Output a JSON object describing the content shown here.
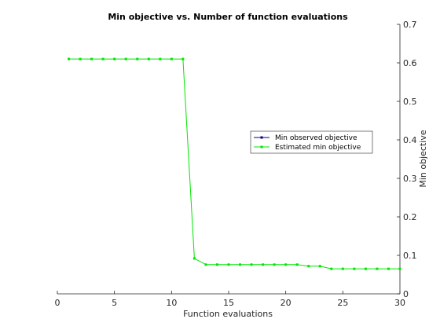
{
  "chart_data": {
    "type": "line",
    "title": "Min objective vs. Number of function evaluations",
    "xlabel": "Function evaluations",
    "ylabel": "Min objective",
    "xlim": [
      0,
      30
    ],
    "ylim": [
      0,
      0.7
    ],
    "x_ticks": [
      "0",
      "5",
      "10",
      "15",
      "20",
      "25",
      "30"
    ],
    "y_ticks": [
      "0",
      "0.1",
      "0.2",
      "0.3",
      "0.4",
      "0.5",
      "0.6",
      "0.7"
    ],
    "y_axis_side": "right",
    "grid": false,
    "legend_position": "center-right",
    "series": [
      {
        "name": "Min observed objective",
        "color": "#00008b",
        "x": [],
        "y": []
      },
      {
        "name": "Estimated min objective",
        "color": "#00e600",
        "x": [
          1,
          2,
          3,
          4,
          5,
          6,
          7,
          8,
          9,
          10,
          11,
          12,
          13,
          14,
          15,
          16,
          17,
          18,
          19,
          20,
          21,
          22,
          23,
          24,
          25,
          26,
          27,
          28,
          29,
          30
        ],
        "y": [
          0.61,
          0.61,
          0.61,
          0.61,
          0.61,
          0.61,
          0.61,
          0.61,
          0.61,
          0.61,
          0.61,
          0.092,
          0.076,
          0.076,
          0.076,
          0.076,
          0.076,
          0.076,
          0.076,
          0.076,
          0.076,
          0.072,
          0.072,
          0.065,
          0.065,
          0.065,
          0.065,
          0.065,
          0.065,
          0.065
        ]
      }
    ]
  }
}
